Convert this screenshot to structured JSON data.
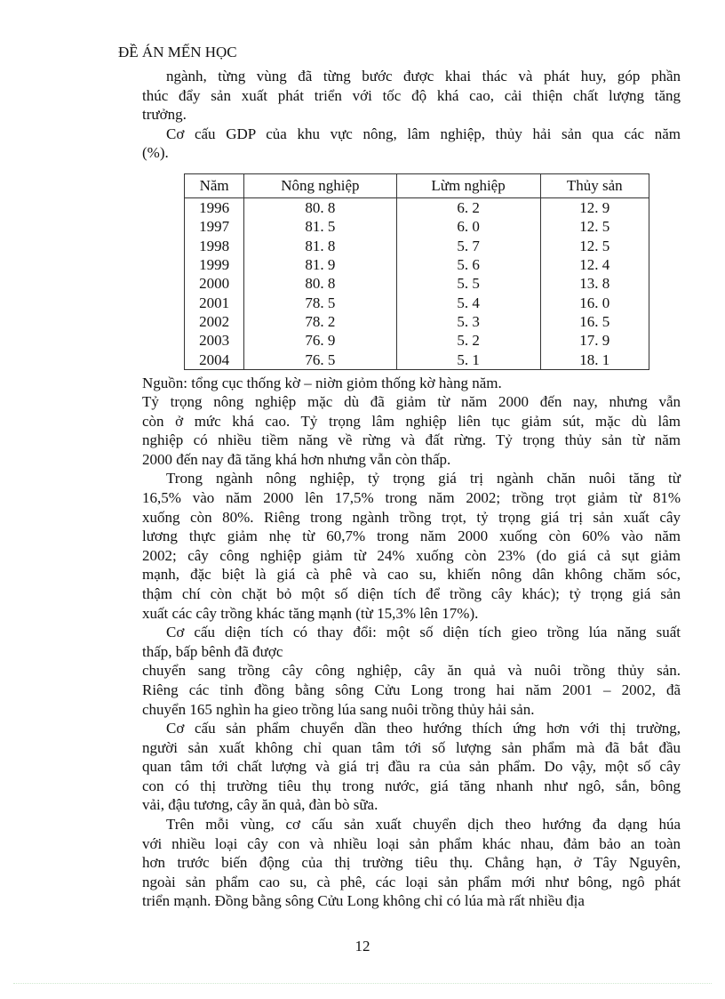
{
  "header": {
    "title": "ĐỀ ÁN MẾN HỌC"
  },
  "intro": [
    {
      "lines": [
        "ngành, từng vùng đã từng bước được khai thác và phát huy, góp phần",
        "thúc đẩy sản xuất phát triển với tốc độ khá cao, cải thiện chất lượng tăng",
        "trưởng."
      ]
    },
    {
      "lines": [
        "Cơ cấu GDP của khu vực nông, lâm nghiệp, thủy hải sản qua các năm",
        "(%)."
      ]
    }
  ],
  "table": {
    "headers": [
      "Năm",
      "Nông nghiệp",
      "Lừm nghiệp",
      "Thủy sản"
    ],
    "rows": [
      [
        "1996",
        "80. 8",
        "6. 2",
        "12. 9"
      ],
      [
        "1997",
        "81. 5",
        "6. 0",
        "12. 5"
      ],
      [
        "1998",
        "81. 8",
        "5. 7",
        "12. 5"
      ],
      [
        "1999",
        "81. 9",
        "5. 6",
        "12. 4"
      ],
      [
        "2000",
        "80. 8",
        "5. 5",
        "13. 8"
      ],
      [
        "2001",
        "78. 5",
        "5. 4",
        "16. 0"
      ],
      [
        "2002",
        "78. 2",
        "5. 3",
        "16. 5"
      ],
      [
        "2003",
        "76. 9",
        "5. 2",
        "17. 9"
      ],
      [
        "2004",
        "76. 5",
        "5. 1",
        "18. 1"
      ]
    ],
    "source": "Nguồn: tổng cục thống kờ – niờn giỏm thống kờ hàng năm."
  },
  "body": [
    {
      "indent": false,
      "lines": [
        "Tỷ trọng nông nghiệp mặc dù đã giảm từ năm 2000 đến nay, nhưng vẫn",
        "còn ở mức khá cao. Tỷ trọng lâm nghiệp liên tục giảm sút, mặc dù lâm",
        "nghiệp có nhiều tiềm năng về rừng và đất rừng. Tỷ trọng thủy sản từ năm",
        "2000 đến nay đã tăng khá hơn nhưng vẫn còn thấp."
      ]
    },
    {
      "indent": true,
      "lines": [
        "Trong ngành nông nghiệp, tỷ trọng giá trị ngành chăn nuôi tăng từ",
        "16,5% vào năm 2000 lên 17,5% trong năm 2002; trồng trọt giảm từ 81%",
        "xuống còn 80%. Riêng trong ngành trồng trọt, tỷ trọng giá trị sản xuất cây",
        "lương thực giảm nhẹ từ 60,7% trong năm 2000 xuống còn 60% vào năm",
        "2002; cây công nghiệp giảm từ 24% xuống còn 23% (do giá cả sụt giảm",
        "mạnh, đặc biệt là giá cà phê và cao su, khiến nông dân không chăm sóc,",
        "thậm chí còn chặt bỏ một số diện tích để trồng cây khác); tỷ trọng giá sản",
        "xuất các cây trồng khác tăng mạnh (từ 15,3% lên 17%)."
      ]
    },
    {
      "indent": true,
      "lines": [
        "Cơ cấu diện tích có thay đổi: một số diện tích gieo trồng lúa năng suất",
        "thấp, bấp bênh đã được"
      ]
    },
    {
      "indent": false,
      "lines": [
        "chuyển sang trồng cây công nghiệp, cây ăn quả và nuôi trồng thủy sản.",
        "Riêng các tỉnh đồng bằng sông Cửu Long trong hai năm 2001 – 2002, đã",
        "chuyển 165 nghìn ha gieo trồng lúa sang nuôi trồng thủy hải sản."
      ]
    },
    {
      "indent": true,
      "lines": [
        "Cơ cấu sản phẩm chuyển dần theo hướng thích ứng hơn với thị trường,",
        "người sản xuất không chỉ quan tâm tới số lượng sản phẩm mà đã bắt đầu",
        "quan tâm tới chất lượng và giá trị đầu ra của sản phẩm. Do vậy, một số cây",
        "con có thị trường tiêu thụ trong nước, giá tăng nhanh như ngô, sắn, bông",
        "vải, đậu tương, cây ăn quả, đàn bò sữa."
      ]
    },
    {
      "indent": true,
      "lines": [
        "Trên mỗi vùng, cơ cấu sản xuất chuyển dịch theo hướng đa dạng húa",
        "với nhiều loại cây con và nhiều loại sản phẩm khác nhau, đảm bảo an toàn",
        "hơn trước biến động của thị trường tiêu thụ. Chẳng hạn, ở Tây Nguyên,",
        "ngoài sản phẩm cao su, cà phê, các loại sản phẩm mới như bông, ngô phát",
        "triển mạnh. Đồng bằng sông Cửu Long không chỉ có lúa mà rất nhiều địa"
      ]
    }
  ],
  "footer": {
    "page_number": "12"
  }
}
